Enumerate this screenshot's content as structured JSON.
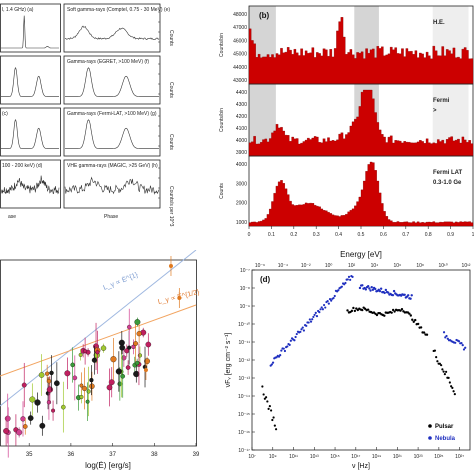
{
  "panel_a": {
    "rows": [
      {
        "left_label": "l, 1.4 GHz) (a)",
        "right_label": "Soft gamma-rays (Comptel, 0.75 - 30 MeV) (e)",
        "unit": "Counts"
      },
      {
        "left_label": "",
        "right_label": "Gamma-rays (EGRET, >100 MeV) (f)",
        "unit": "Counts"
      },
      {
        "left_label": "(c)",
        "right_label": "Gamma-rays (Fermi-LAT, >100 MeV) (g)",
        "unit": "Counts"
      },
      {
        "left_label": "100 - 200 keV) (d)",
        "right_label": "VHE gamma-rays (MAGIC, >25 GeV) (h)",
        "unit": "Counts/s per 10^3"
      }
    ],
    "xlabel_left": "ase",
    "xlabel_right": "Phase"
  },
  "panel_b": {
    "label": "(b)",
    "rows": [
      {
        "ylabel": "Counts/bin",
        "ticks": [
          "48000",
          "47000",
          "46000",
          "45000",
          "44000",
          "43000"
        ],
        "legend": "H.E."
      },
      {
        "ylabel": "Counts/bin",
        "ticks": [
          "4400",
          "4300",
          "4200",
          "4100",
          "4000",
          "3900"
        ],
        "legend": "Fermi",
        "legend2": ">"
      },
      {
        "ylabel": "Counts",
        "ticks": [
          "4000",
          "3000",
          "2000",
          "1000"
        ],
        "legend": "Fermi LAT",
        "legend2": "0.3-1.0 Ge"
      }
    ],
    "xticks": [
      "0",
      "0.1",
      "0.2",
      "0.3",
      "0.4",
      "0.5",
      "0.6",
      "0.7",
      "0.8",
      "0.9",
      "1"
    ],
    "colors": {
      "hist": "#cc0000",
      "shade": "#bfbfbf"
    }
  },
  "panel_c": {
    "xlabel": "log(Ė) [erg/s]",
    "xticks": [
      "35",
      "36",
      "37",
      "38",
      "39"
    ],
    "annotation_blue": "L_γ ∝ Ė^{1}",
    "annotation_orange": "L_γ ∝ Ė^{1/2}"
  },
  "panel_d": {
    "label": "(d)",
    "top_axis_title": "Energy [eV]",
    "top_ticks": [
      "10⁻⁶",
      "10⁻⁴",
      "10⁻²",
      "10⁰",
      "10²",
      "10⁴",
      "10⁶",
      "10⁸",
      "10¹⁰",
      "10¹²"
    ],
    "bottom_ticks": [
      "10⁷",
      "10⁹",
      "10¹¹",
      "10¹³",
      "10¹⁵",
      "10¹⁷",
      "10¹⁹",
      "10²¹",
      "10²³",
      "10²⁵",
      "10²⁷"
    ],
    "yticks": [
      "10⁻⁷",
      "10⁻⁸",
      "10⁻⁹",
      "10⁻¹⁰",
      "10⁻¹¹",
      "10⁻¹²",
      "10⁻¹³",
      "10⁻¹⁴",
      "10⁻¹⁵",
      "10⁻¹⁶",
      "10⁻¹⁷"
    ],
    "ylabel": "νFᵥ [erg cm⁻² s⁻¹]",
    "xlabel": "ν [Hz]",
    "legend": [
      {
        "name": "Pulsar",
        "color": "#000000"
      },
      {
        "name": "Nebula",
        "color": "#1f2fbf"
      }
    ]
  }
}
